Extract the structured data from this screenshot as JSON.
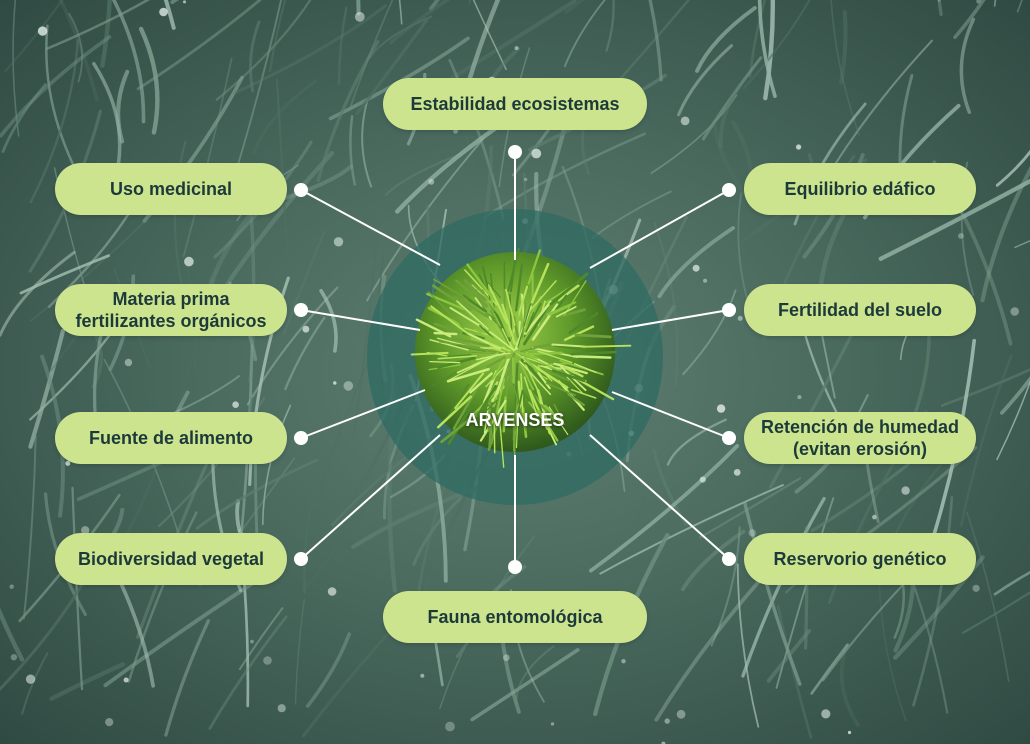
{
  "diagram": {
    "center": "ARVENSES",
    "nodes": [
      {
        "id": "estabilidad",
        "label": "Estabilidad ecosistemas"
      },
      {
        "id": "uso-medicinal",
        "label": "Uso medicinal"
      },
      {
        "id": "materia-prima",
        "label": "Materia prima\nfertilizantes orgánicos"
      },
      {
        "id": "fuente-alimento",
        "label": "Fuente de alimento"
      },
      {
        "id": "biodiversidad",
        "label": "Biodiversidad vegetal"
      },
      {
        "id": "fauna",
        "label": "Fauna entomológica"
      },
      {
        "id": "equilibrio",
        "label": "Equilibrio edáfico"
      },
      {
        "id": "fertilidad",
        "label": "Fertilidad del suelo"
      },
      {
        "id": "retencion",
        "label": "Retención de humedad\n(evitan erosión)"
      },
      {
        "id": "reservorio",
        "label": "Reservorio genético"
      }
    ]
  },
  "colors": {
    "pill": "#cde48f",
    "pill_text": "#1d3a3a",
    "circle": "#2f6b62",
    "grass": "#6fa33a",
    "line": "#ffffff"
  }
}
